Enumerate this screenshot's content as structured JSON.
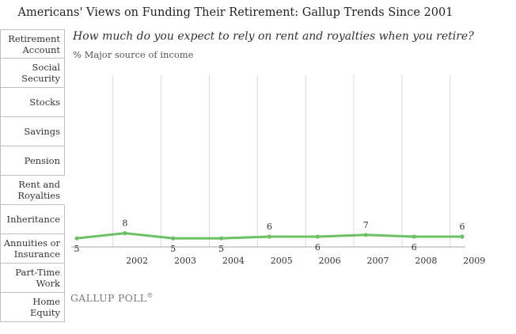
{
  "title": "Americans' Views on Funding Their Retirement: Gallup Trends Since 2001",
  "tabs": [
    {
      "label": "Retirement Account",
      "active": false
    },
    {
      "label": "Social Security",
      "active": false
    },
    {
      "label": "Stocks",
      "active": false
    },
    {
      "label": "Savings",
      "active": false
    },
    {
      "label": "Pension",
      "active": false
    },
    {
      "label": "Rent and Royalties",
      "active": true
    },
    {
      "label": "Inheritance",
      "active": false
    },
    {
      "label": "Annuities or Insurance",
      "active": false
    },
    {
      "label": "Part-Time Work",
      "active": false
    },
    {
      "label": "Home Equity",
      "active": false
    }
  ],
  "logo": "GALLUP POLL",
  "logo_icon": "registered-mark",
  "colors": {
    "line": "#6cc164",
    "grid": "#d9d9d9",
    "axis": "#aaaaaa"
  },
  "chart_data": {
    "type": "line",
    "title": "How much do you expect to rely on rent and royalties when you retire?",
    "subtitle": "% Major source of income",
    "x_ticks": [
      "2002",
      "2003",
      "2004",
      "2005",
      "2006",
      "2007",
      "2008",
      "2009"
    ],
    "xlim": [
      "2001-04",
      "2009-04"
    ],
    "ylim": [
      0,
      100
    ],
    "grid": "vertical",
    "series": [
      {
        "points": [
          {
            "x": "2001-04",
            "y": 5
          },
          {
            "x": "2002-04",
            "y": 8
          },
          {
            "x": "2003-04",
            "y": 5
          },
          {
            "x": "2004-04",
            "y": 5
          },
          {
            "x": "2005-04",
            "y": 6
          },
          {
            "x": "2006-04",
            "y": 6
          },
          {
            "x": "2007-04",
            "y": 7
          },
          {
            "x": "2008-04",
            "y": 6
          },
          {
            "x": "2009-04",
            "y": 6
          }
        ]
      }
    ]
  }
}
